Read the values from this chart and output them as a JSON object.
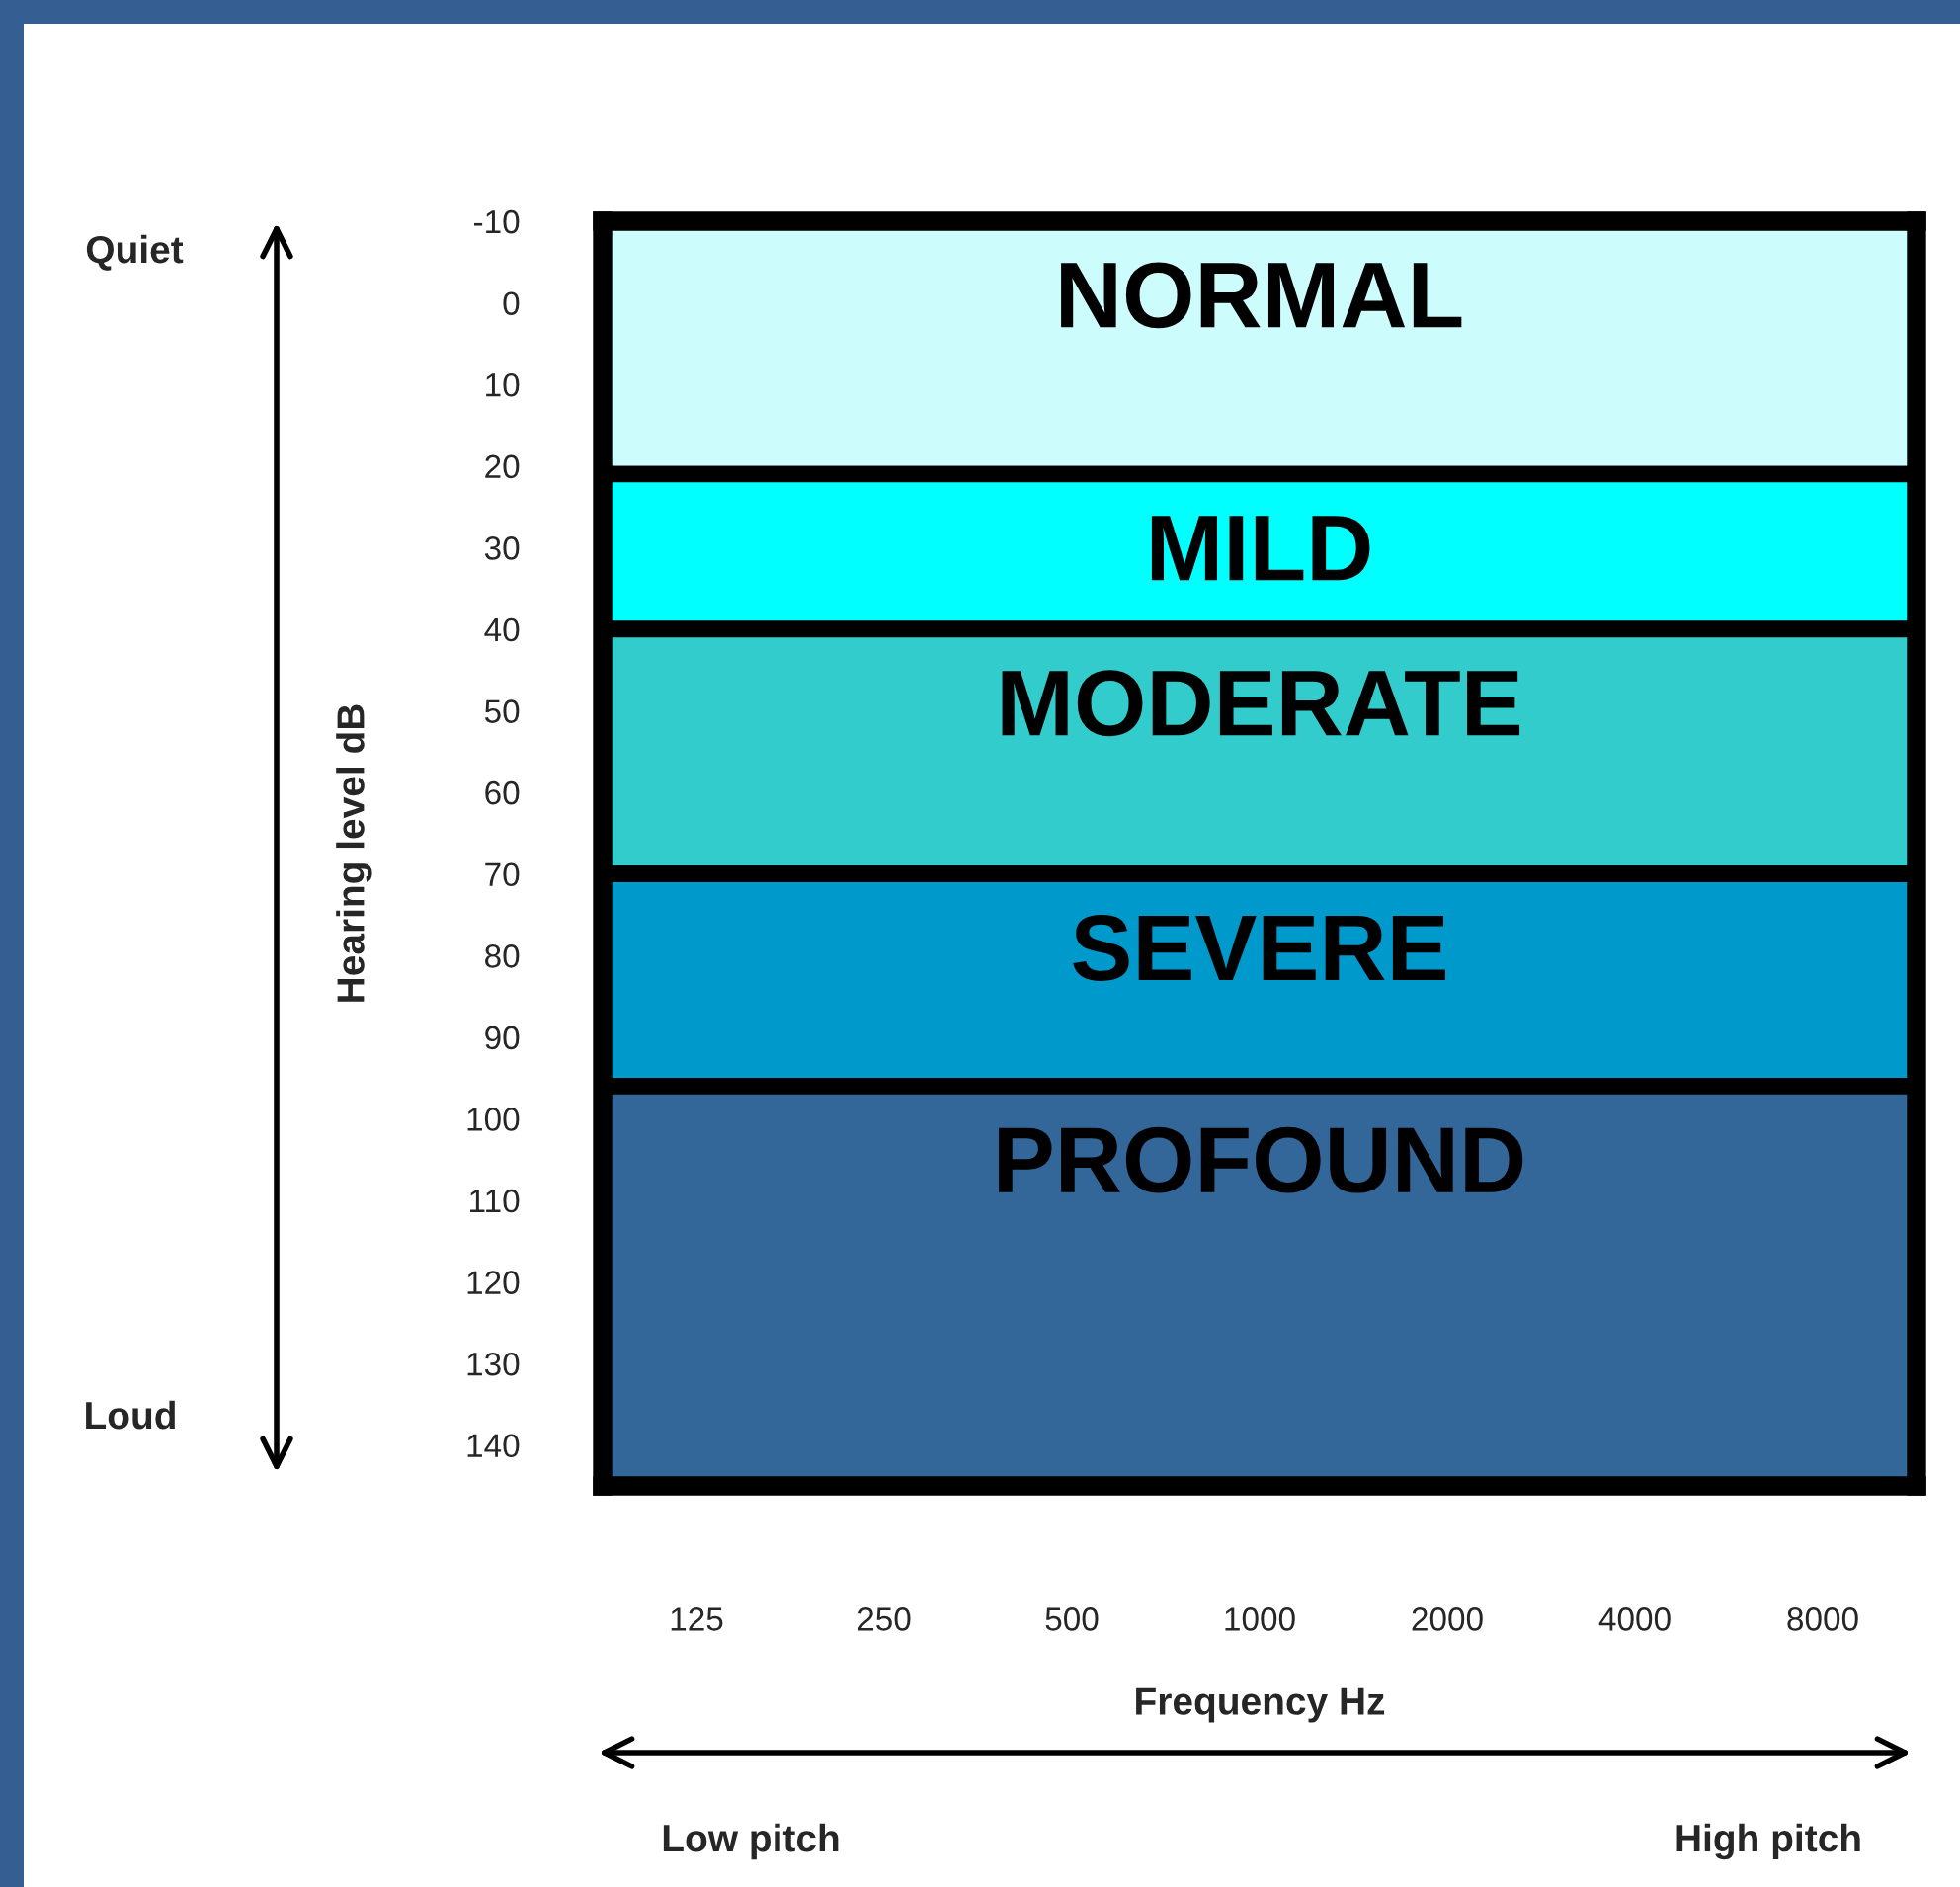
{
  "chart_data": {
    "type": "line",
    "categories": [
      "125",
      "250",
      "500",
      "1000",
      "2000",
      "4000",
      "8000"
    ],
    "ylim": [
      145,
      -10
    ],
    "yticks": [
      -10,
      0,
      10,
      20,
      30,
      40,
      50,
      60,
      70,
      80,
      90,
      100,
      110,
      120,
      130,
      140
    ],
    "xlabel": "Frequency Hz",
    "ylabel": "Hearing level dB",
    "bands": [
      {
        "axis": "y",
        "from": -10,
        "to": 21,
        "label": "NORMAL",
        "color": "#ccfcfc"
      },
      {
        "axis": "y",
        "from": 21,
        "to": 40,
        "label": "MILD",
        "color": "#00ffff"
      },
      {
        "axis": "y",
        "from": 40,
        "to": 70,
        "label": "MODERATE",
        "color": "#33cccc"
      },
      {
        "axis": "y",
        "from": 70,
        "to": 96,
        "label": "SEVERE",
        "color": "#0099cc"
      },
      {
        "axis": "y",
        "from": 96,
        "to": 145,
        "label": "PROFOUND",
        "color": "#336699"
      }
    ],
    "annotations": [
      "Quiet",
      "Loud",
      "Low pitch",
      "High pitch"
    ]
  }
}
